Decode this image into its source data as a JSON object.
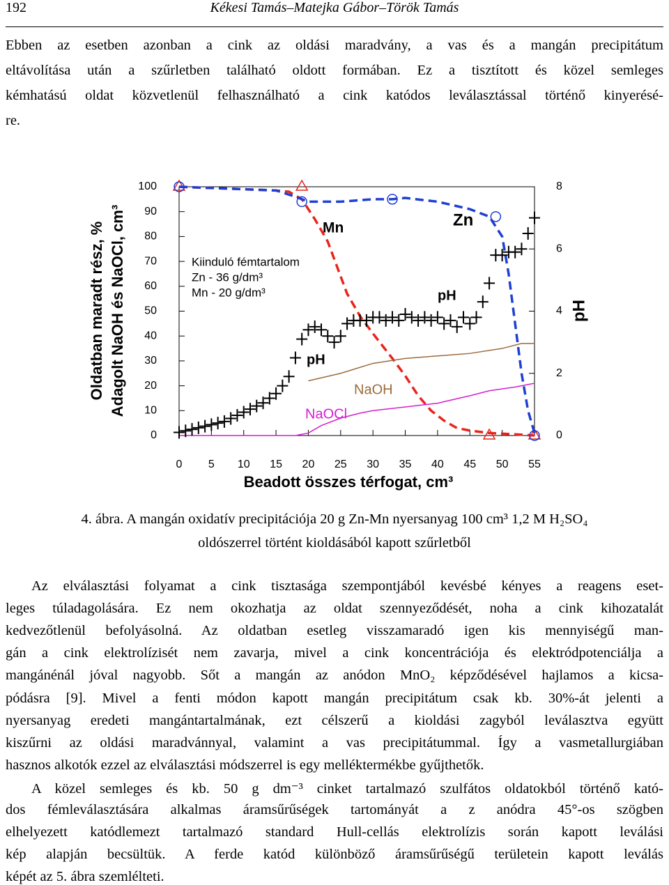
{
  "header": {
    "page": "192",
    "authors": "Kékesi Tamás–Matejka Gábor–Török Tamás"
  },
  "paragraphs": [
    [
      "Ebben az esetben azonban a cink az oldási maradvány, a vas és a mangán precipitátum",
      "eltávolítása után a szűrletben található oldott formában. Ez a tisztított és közel semleges",
      "kémhatású oldat közvetlenül felhasználható a cink katódos leválasztással történő kinyerésé-",
      "re."
    ]
  ],
  "caption": [
    "4. ábra. A mangán oxidatív precipitációja 20 g Zn-Mn nyersanyag 100 cm³ 1,2 M H₂SO₄",
    "oldószerrel történt kioldásából kapott szűrletből"
  ],
  "body": [
    [
      "Az elválasztási folyamat a cink tisztasága szempontjából kevésbé kényes a reagens eset-",
      "leges túladagolására. Ez nem okozhatja az oldat szennyeződését, noha a cink kihozatalát",
      "kedvezőtlenül befolyásolná. Az oldatban esetleg visszamaradó igen kis mennyiségű man-",
      "gán a cink elektrolízisét nem zavarja, mivel a cink koncentrációja és elektródpotenciálja a",
      "mangánénál jóval nagyobb. Sőt a mangán az anódon MnO₂ képződésével hajlamos a kicsa-",
      "pódásra [9]. Mivel a fenti módon kapott mangán precipitátum csak kb. 30%-át jelenti a",
      "nyersanyag eredeti mangántartalmának, ezt célszerű a kioldási zagyból leválasztva együtt",
      "kiszűrni az oldási maradvánnyal, valamint a vas precipitátummal. Így a vasmetallurgiában",
      "hasznos alkotók ezzel az elválasztási módszerrel is egy melléktermékbe gyűjthetők."
    ],
    [
      "A közel semleges és kb. 50 g dm⁻³ cinket tartalmazó szulfátos oldatokból történő kató-",
      "dos fémleválasztására alkalmas áramsűrűségek tartományát a z anódra 45°-os szögben",
      "elhelyezett katódlemezt tartalmazó standard Hull-cellás elektrolízis során kapott leválási",
      "kép alapján becsültük. A ferde katód különböző áramsűrűségű területein kapott leválás",
      "képét az 5. ábra szemlélteti."
    ]
  ],
  "chart_data": {
    "type": "line",
    "xlabel": "Beadott összes térfogat, cm³",
    "ylabel": [
      "Oldatban maradt rész, %",
      "Adagolt NaOH és NaOCl, cm³"
    ],
    "y2label": "pH",
    "xlim": [
      0,
      55
    ],
    "xticks": [
      0,
      5,
      10,
      15,
      20,
      25,
      30,
      35,
      40,
      45,
      50,
      55
    ],
    "ylim": [
      0,
      100
    ],
    "yticks": [
      0,
      10,
      20,
      30,
      40,
      50,
      60,
      70,
      80,
      90,
      100
    ],
    "y2lim": [
      0,
      8
    ],
    "y2ticks": [
      0,
      2,
      4,
      6,
      8
    ],
    "annotations": [
      "Kiinduló fémtartalom",
      "Zn - 36 g/dm³",
      "Mn - 20 g/dm³",
      "pH"
    ],
    "series": [
      {
        "name": "Mn",
        "color": "#e8241c",
        "style": "dashed",
        "x": [
          0,
          5,
          10,
          15,
          17,
          19,
          21,
          23,
          26,
          28,
          30,
          33,
          35,
          37,
          39,
          41,
          43,
          45,
          48,
          52,
          55
        ],
        "values": [
          100,
          99.5,
          99,
          98.5,
          98,
          95,
          87,
          78,
          57,
          48,
          41,
          31,
          24,
          16,
          10,
          6,
          3,
          2,
          1,
          0.5,
          0
        ]
      },
      {
        "color": "#e8241c",
        "style": "triangle",
        "x": [
          0,
          19,
          48,
          55
        ],
        "values": [
          100,
          100,
          0,
          0
        ]
      },
      {
        "name": "Zn",
        "color": "#1f3fd1",
        "style": "dashed",
        "x": [
          0,
          5,
          10,
          15,
          18,
          20,
          25,
          30,
          33,
          35,
          40,
          45,
          48,
          50,
          51,
          52,
          53,
          54,
          55
        ],
        "values": [
          100,
          99.5,
          99,
          98.5,
          96,
          94,
          94,
          95,
          95,
          95.5,
          94,
          91,
          88,
          80,
          65,
          45,
          25,
          10,
          1
        ]
      },
      {
        "color": "#1f3fd1",
        "style": "circle",
        "x": [
          0,
          19,
          33,
          49,
          55
        ],
        "values": [
          100,
          94,
          95,
          88,
          0
        ]
      },
      {
        "name": "NaOH",
        "color": "#9c6b3c",
        "style": "solid",
        "x": [
          20,
          25,
          30,
          35,
          40,
          45,
          50,
          53,
          55
        ],
        "values": [
          22,
          25,
          29,
          31,
          32,
          33,
          35,
          37,
          37
        ]
      },
      {
        "name": "NaOCl",
        "color": "#d21fd2",
        "style": "solid",
        "x": [
          0,
          18,
          20,
          22,
          25,
          28,
          30,
          35,
          40,
          45,
          48,
          52,
          55
        ],
        "values": [
          0,
          0,
          1,
          4,
          7,
          9,
          10,
          11.5,
          13,
          16,
          18,
          19.5,
          21
        ]
      },
      {
        "name": "pH",
        "color": "#000000",
        "style": "cross",
        "axis": "y2",
        "x": [
          0,
          1,
          2,
          3,
          4,
          5,
          6,
          7,
          8,
          9,
          10,
          11,
          12,
          13,
          14,
          15,
          16,
          17,
          18,
          19,
          20,
          21,
          22,
          23,
          24,
          25,
          26,
          27,
          28,
          29,
          30,
          31,
          32,
          33,
          34,
          35,
          36,
          37,
          38,
          39,
          40,
          41,
          42,
          43,
          44,
          45,
          46,
          47,
          48,
          49,
          50,
          51,
          52,
          53,
          54,
          55
        ],
        "values": [
          0.1,
          0.15,
          0.2,
          0.25,
          0.3,
          0.35,
          0.4,
          0.45,
          0.55,
          0.65,
          0.75,
          0.85,
          0.95,
          1.05,
          1.2,
          1.35,
          1.6,
          1.9,
          2.5,
          3.1,
          3.4,
          3.5,
          3.4,
          3.2,
          3.0,
          3.2,
          3.6,
          3.7,
          3.7,
          3.7,
          3.8,
          3.8,
          3.7,
          3.8,
          3.7,
          3.9,
          3.8,
          3.7,
          3.8,
          3.7,
          3.8,
          3.6,
          3.7,
          3.5,
          3.8,
          3.6,
          3.8,
          4.3,
          4.9,
          5.8,
          5.8,
          5.9,
          5.9,
          6.0,
          6.5,
          7.0
        ]
      }
    ]
  }
}
